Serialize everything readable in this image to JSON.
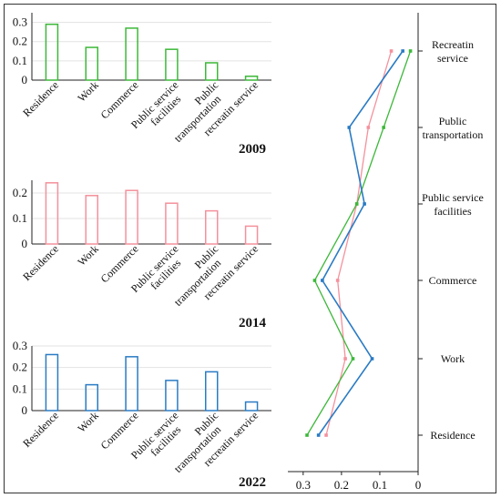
{
  "chart_data": [
    {
      "type": "bar",
      "year": "2009",
      "color": "#3db83a",
      "categories": [
        "Residence",
        "Work",
        "Commerce",
        "Public service facilities",
        "Public transportation",
        "recreatin service"
      ],
      "values": [
        0.29,
        0.17,
        0.27,
        0.16,
        0.09,
        0.02
      ],
      "ylim": [
        0,
        0.35
      ],
      "yticks": [
        "0",
        "0.1",
        "0.2",
        "0.3"
      ]
    },
    {
      "type": "bar",
      "year": "2014",
      "color": "#f4919c",
      "categories": [
        "Residence",
        "Work",
        "Commerce",
        "Public service facilities",
        "Public transportation",
        "recreatin service"
      ],
      "values": [
        0.24,
        0.19,
        0.21,
        0.16,
        0.13,
        0.07
      ],
      "ylim": [
        0,
        0.25
      ],
      "yticks": [
        "0",
        "0.1",
        "0.2"
      ]
    },
    {
      "type": "bar",
      "year": "2022",
      "color": "#2a7bc4",
      "categories": [
        "Residence",
        "Work",
        "Commerce",
        "Public service facilities",
        "Public transportation",
        "recreatin service"
      ],
      "values": [
        0.26,
        0.12,
        0.25,
        0.14,
        0.18,
        0.04
      ],
      "ylim": [
        0,
        0.3
      ],
      "yticks": [
        "0",
        "0.1",
        "0.2",
        "0.3"
      ]
    },
    {
      "type": "line",
      "orientation": "horizontal-values",
      "categories": [
        "Residence",
        "Work",
        "Commerce",
        "Public service facilities",
        "Public transportation",
        "Recreatin service"
      ],
      "category_labels": [
        "Residence",
        "Work",
        "Commerce",
        "Public service\nfacilities",
        "Public\ntransportation",
        "Recreatin\nservice"
      ],
      "xlim": [
        0.34,
        0.0
      ],
      "xticks": [
        "0.3",
        "0.2",
        "0.1",
        "0"
      ],
      "series": [
        {
          "color": "#3db83a",
          "values": [
            0.29,
            0.17,
            0.27,
            0.16,
            0.09,
            0.02
          ]
        },
        {
          "color": "#f4919c",
          "values": [
            0.24,
            0.19,
            0.21,
            0.16,
            0.13,
            0.07
          ]
        },
        {
          "color": "#2a7bc4",
          "values": [
            0.26,
            0.12,
            0.25,
            0.14,
            0.18,
            0.04
          ]
        }
      ]
    }
  ]
}
